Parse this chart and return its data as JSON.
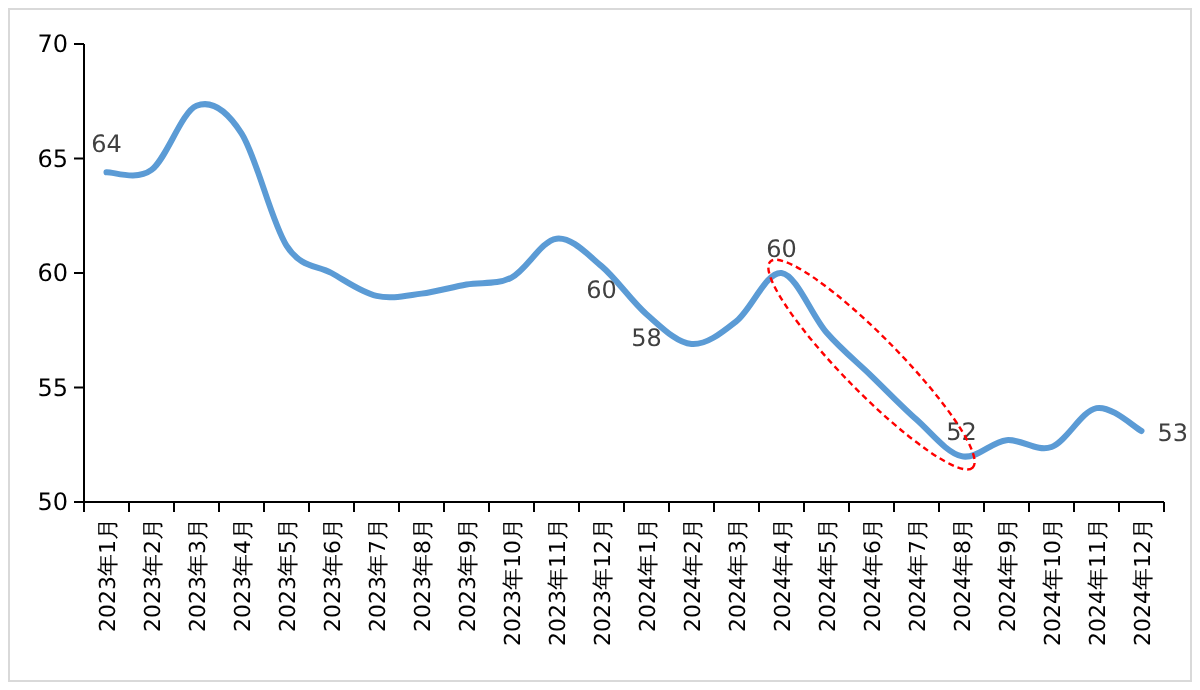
{
  "chart_data": {
    "type": "line",
    "categories": [
      "2023年1月",
      "2023年2月",
      "2023年3月",
      "2023年4月",
      "2023年5月",
      "2023年6月",
      "2023年7月",
      "2023年8月",
      "2023年9月",
      "2023年10月",
      "2023年11月",
      "2023年12月",
      "2024年1月",
      "2024年2月",
      "2024年3月",
      "2024年4月",
      "2024年5月",
      "2024年6月",
      "2024年7月",
      "2024年8月",
      "2024年9月",
      "2024年10月",
      "2024年11月",
      "2024年12月"
    ],
    "series": [
      {
        "color": "#5b9bd5",
        "values": [
          64.4,
          64.5,
          67.3,
          66.1,
          61.2,
          60.0,
          59.0,
          59.1,
          59.5,
          59.8,
          61.5,
          60.3,
          58.2,
          56.9,
          57.9,
          60.0,
          57.4,
          55.5,
          53.6,
          52.0,
          52.7,
          52.4,
          54.1,
          53.1
        ],
        "value_labels": [
          "64",
          null,
          null,
          null,
          null,
          null,
          null,
          null,
          null,
          null,
          null,
          "60",
          "58",
          null,
          null,
          "60",
          null,
          null,
          null,
          "52",
          null,
          null,
          null,
          "53"
        ]
      }
    ],
    "ylim": [
      50,
      70
    ],
    "yticks": [
      50,
      55,
      60,
      65,
      70
    ],
    "grid": false,
    "marker": "none",
    "line_style": "solid"
  }
}
